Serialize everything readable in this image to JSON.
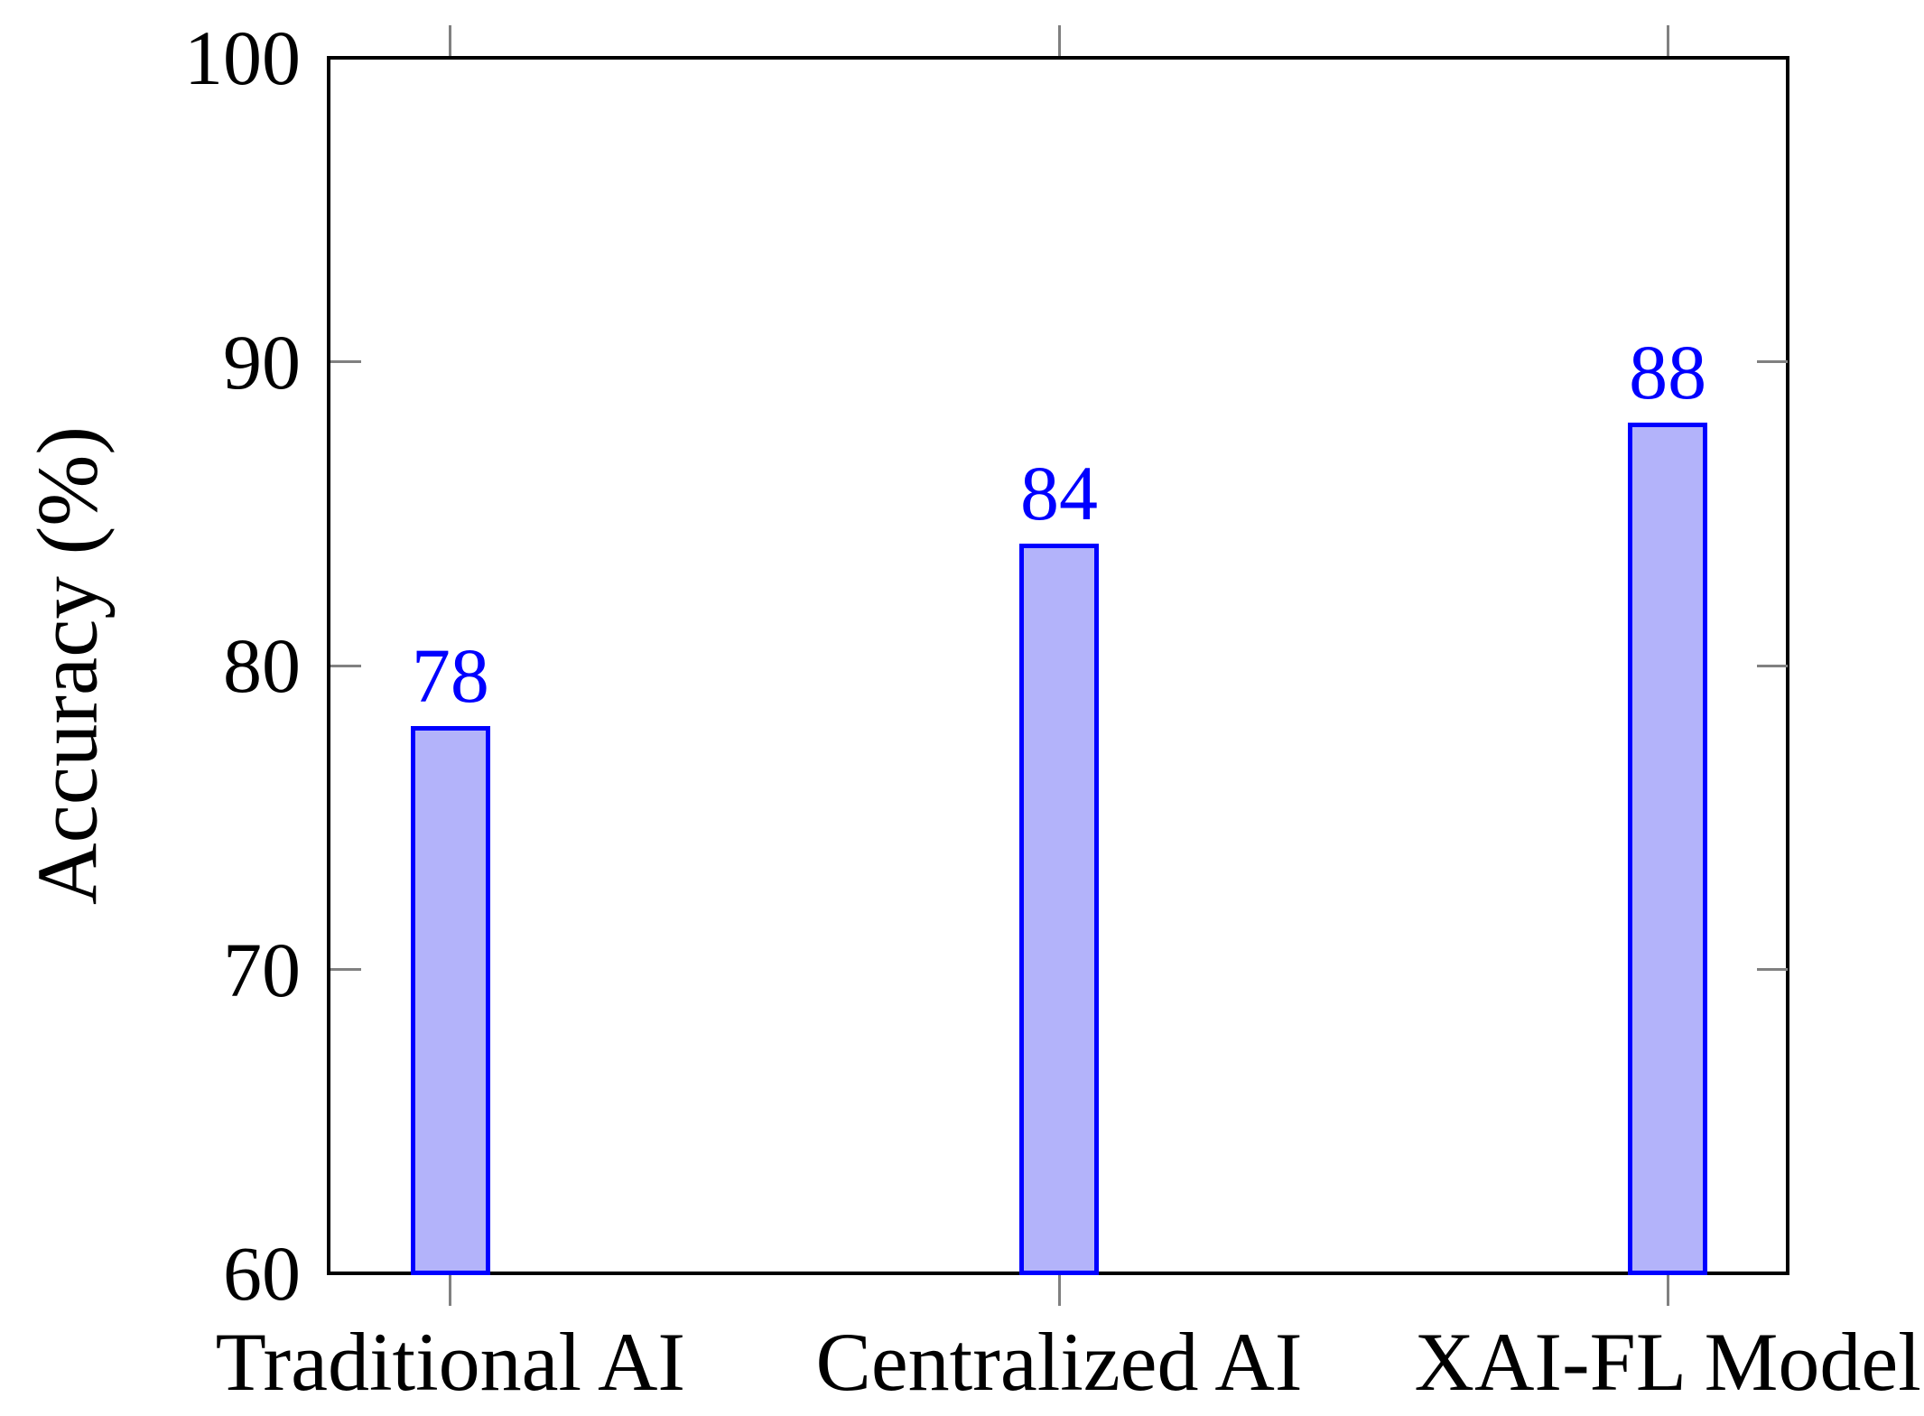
{
  "chart_data": {
    "type": "bar",
    "categories": [
      "Traditional AI",
      "Centralized AI",
      "XAI-FL Model"
    ],
    "values": [
      78,
      84,
      88
    ],
    "bar_value_labels": [
      "78",
      "84",
      "88"
    ],
    "title": "",
    "xlabel": "",
    "ylabel": "Accuracy (%)",
    "ylim": [
      60,
      100
    ],
    "yticks": [
      60,
      70,
      80,
      90,
      100
    ],
    "ytick_labels": [
      "60",
      "70",
      "80",
      "90",
      "100"
    ],
    "grid": false,
    "legend": "none"
  },
  "colors": {
    "bar_fill": "#b3b3fa",
    "bar_border": "#0000ff",
    "value_label": "#0000ff",
    "axis": "#000000",
    "tick_mark": "#808080",
    "text": "#000000"
  }
}
